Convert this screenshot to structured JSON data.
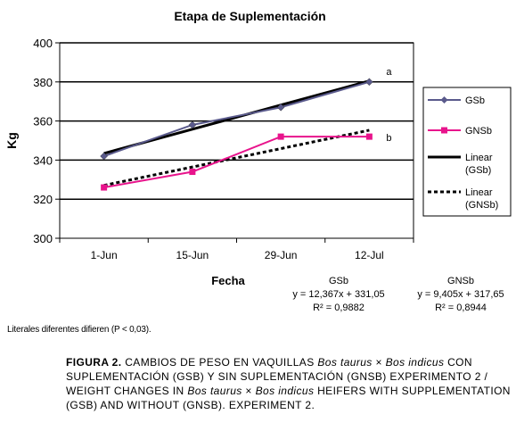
{
  "chart_data": {
    "type": "line",
    "title": "Etapa de Suplementación",
    "xlabel": "Fecha",
    "ylabel": "Kg",
    "categories": [
      "1-Jun",
      "15-Jun",
      "29-Jun",
      "12-Jul"
    ],
    "ylim": [
      300,
      400
    ],
    "yticks": [
      "300",
      "320",
      "340",
      "360",
      "380",
      "400"
    ],
    "grid": true,
    "legend_position": "right",
    "series": [
      {
        "name": "GSb",
        "values": [
          342,
          358,
          367,
          380
        ],
        "color": "#5a5a8c",
        "marker": "diamond",
        "end_label": "a"
      },
      {
        "name": "GNSb",
        "values": [
          326,
          334,
          352,
          352
        ],
        "color": "#e8148c",
        "marker": "square",
        "end_label": "b"
      }
    ],
    "trendlines": [
      {
        "name": "Linear\n(GSb)",
        "values": [
          343.42,
          355.79,
          368.15,
          380.52
        ],
        "color": "#000000",
        "style": "solid"
      },
      {
        "name": "Linear\n(GNSb)",
        "values": [
          327.06,
          336.46,
          345.87,
          355.27
        ],
        "color": "#000000",
        "style": "dashed"
      }
    ]
  },
  "equations": [
    {
      "label": "GSb",
      "equation": "y = 12,367x + 331,05",
      "r2": "R² = 0,9882"
    },
    {
      "label": "GNSb",
      "equation": "y = 9,405x + 317,65",
      "r2": "R² = 0,8944"
    }
  ],
  "note": "Literales diferentes difieren (P < 0,03).",
  "caption": {
    "label": "FIGURA 2.",
    "parts": [
      {
        "text": " CAMBIOS DE PESO EN VAQUILLAS ",
        "italic": false
      },
      {
        "text": "Bos taurus",
        "italic": true
      },
      {
        "text": " × ",
        "italic": false
      },
      {
        "text": "Bos indicus",
        "italic": true
      },
      {
        "text": " CON SUPLEMENTACIÓN (GSB) Y SIN SUPLEMENTACIÓN (GNSB) EXPERIMENTO 2 / WEIGHT CHANGES IN ",
        "italic": false
      },
      {
        "text": "Bos taurus",
        "italic": true
      },
      {
        "text": " × ",
        "italic": false
      },
      {
        "text": "Bos indicus",
        "italic": true
      },
      {
        "text": " HEIFERS WITH SUPPLEMENTATION (GSB) AND WITHOUT (GNSB). EXPERIMENT 2.",
        "italic": false
      }
    ]
  }
}
